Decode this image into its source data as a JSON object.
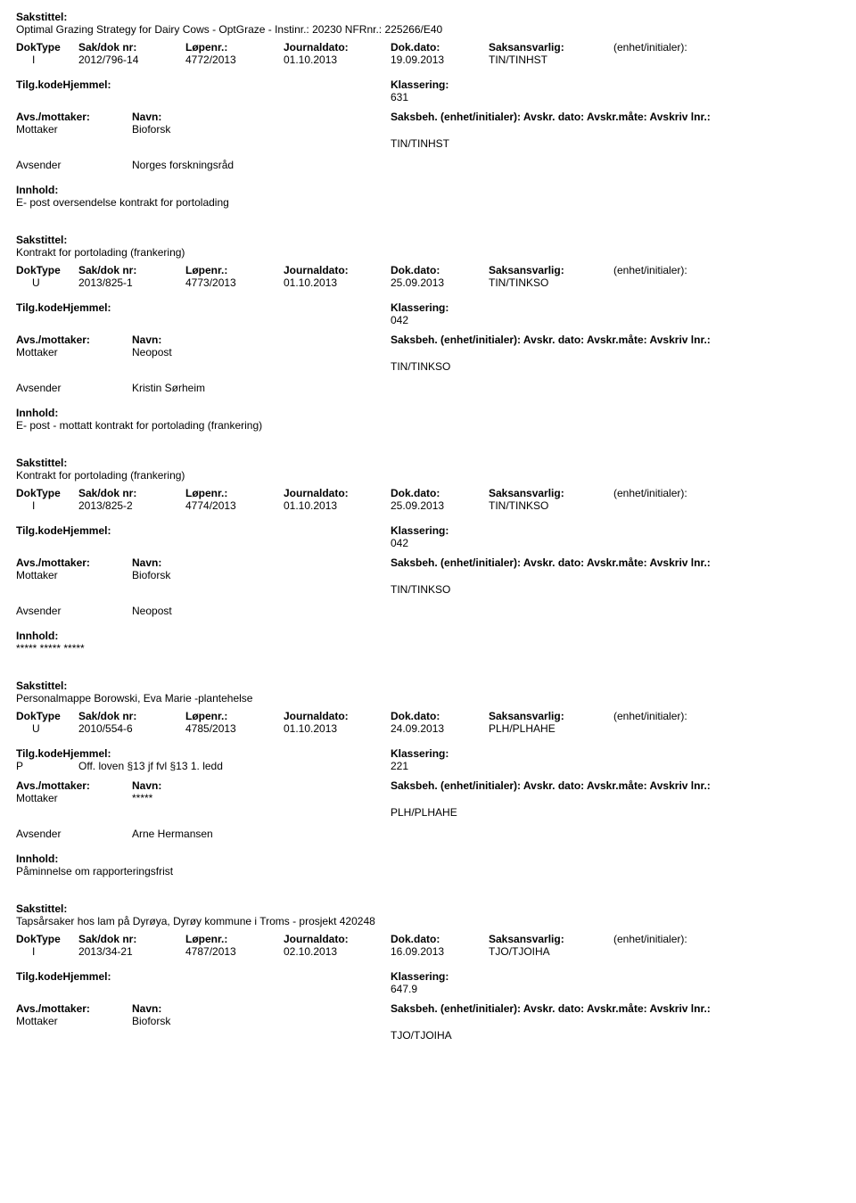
{
  "labels": {
    "sakstittel": "Sakstittel:",
    "doktype": "DokType",
    "sakdok": "Sak/dok nr:",
    "lopenr": "Løpenr.:",
    "journaldato": "Journaldato:",
    "dokdato": "Dok.dato:",
    "saksansvarlig": "Saksansvarlig:",
    "enhet": "(enhet/initialer):",
    "tilgkode": "Tilg.kode",
    "hjemmel": "Hjemmel:",
    "klassering": "Klassering:",
    "avsmottaker": "Avs./mottaker:",
    "navn": "Navn:",
    "saksbeh_line": "Saksbeh. (enhet/initialer): Avskr. dato: Avskr.måte: Avskriv lnr.:",
    "innhold": "Innhold:",
    "mottaker": "Mottaker",
    "avsender": "Avsender"
  },
  "entries": [
    {
      "sakstittel": "Optimal Grazing Strategy for Dairy Cows - OptGraze - Instinr.: 20230 NFRnr.: 225266/E40",
      "doktype": "I",
      "sakdok": "2012/796-14",
      "lopenr": "4772/2013",
      "journaldato": "01.10.2013",
      "dokdato": "19.09.2013",
      "saksansvarlig": "TIN/TINHST",
      "tilgkode": "",
      "hjemmel": "",
      "klassering": "631",
      "mottaker": "Bioforsk",
      "saksbeh_unit": "TIN/TINHST",
      "avsender": "Norges forskningsråd",
      "innhold": "E- post oversendelse kontrakt for portolading"
    },
    {
      "sakstittel": "Kontrakt for portolading (frankering)",
      "doktype": "U",
      "sakdok": "2013/825-1",
      "lopenr": "4773/2013",
      "journaldato": "01.10.2013",
      "dokdato": "25.09.2013",
      "saksansvarlig": "TIN/TINKSO",
      "tilgkode": "",
      "hjemmel": "",
      "klassering": "042",
      "mottaker": "Neopost",
      "saksbeh_unit": "TIN/TINKSO",
      "avsender": "Kristin Sørheim",
      "innhold": "E- post - mottatt kontrakt for portolading (frankering)"
    },
    {
      "sakstittel": "Kontrakt for portolading (frankering)",
      "doktype": "I",
      "sakdok": "2013/825-2",
      "lopenr": "4774/2013",
      "journaldato": "01.10.2013",
      "dokdato": "25.09.2013",
      "saksansvarlig": "TIN/TINKSO",
      "tilgkode": "",
      "hjemmel": "",
      "klassering": "042",
      "mottaker": "Bioforsk",
      "saksbeh_unit": "TIN/TINKSO",
      "avsender": "Neopost",
      "innhold": "***** ***** *****"
    },
    {
      "sakstittel": "Personalmappe   Borowski, Eva Marie -plantehelse",
      "doktype": "U",
      "sakdok": "2010/554-6",
      "lopenr": "4785/2013",
      "journaldato": "01.10.2013",
      "dokdato": "24.09.2013",
      "saksansvarlig": "PLH/PLHAHE",
      "tilgkode": "P",
      "hjemmel": "Off. loven §13 jf fvl §13 1. ledd",
      "klassering": "221",
      "mottaker": "*****",
      "saksbeh_unit": "PLH/PLHAHE",
      "avsender": "Arne Hermansen",
      "innhold": "Påminnelse om rapporteringsfrist"
    },
    {
      "sakstittel": "Tapsårsaker hos lam på Dyrøya, Dyrøy kommune i Troms - prosjekt 420248",
      "doktype": "I",
      "sakdok": "2013/34-21",
      "lopenr": "4787/2013",
      "journaldato": "02.10.2013",
      "dokdato": "16.09.2013",
      "saksansvarlig": "TJO/TJOIHA",
      "tilgkode": "",
      "hjemmel": "",
      "klassering": "647.9",
      "mottaker": "Bioforsk",
      "saksbeh_unit": "TJO/TJOIHA",
      "avsender": "",
      "innhold": ""
    }
  ]
}
